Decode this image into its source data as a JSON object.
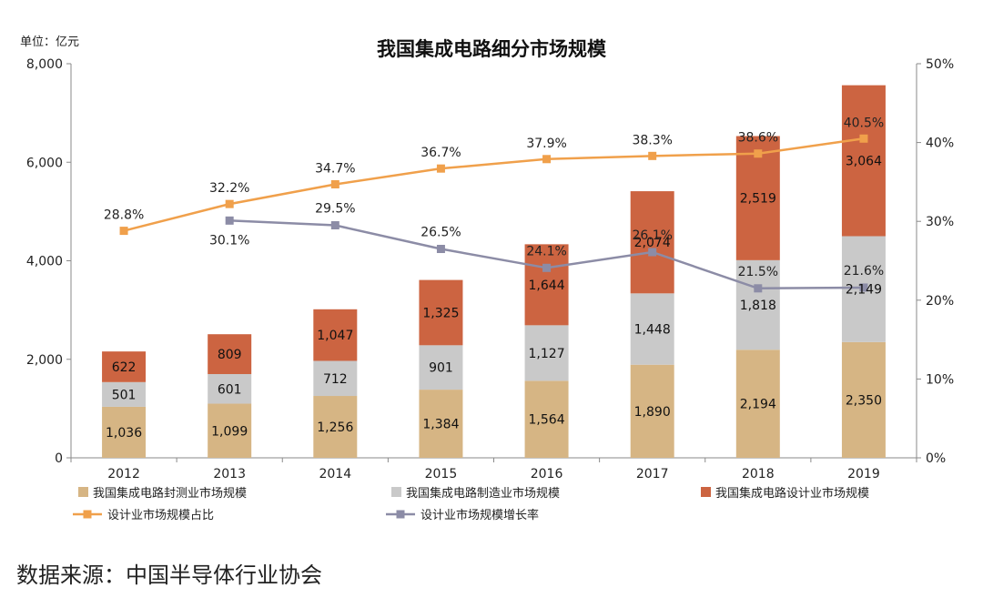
{
  "source_text": "数据来源：中国半导体行业协会",
  "chart_data": {
    "type": "bar",
    "title": "我国集成电路细分市场规模",
    "unit_label": "单位：亿元",
    "categories": [
      "2012",
      "2013",
      "2014",
      "2015",
      "2016",
      "2017",
      "2018",
      "2019"
    ],
    "left_axis": {
      "ylim": [
        0,
        8000
      ],
      "ticks": [
        "0",
        "2,000",
        "4,000",
        "6,000",
        "8,000"
      ],
      "tick_values": [
        0,
        2000,
        4000,
        6000,
        8000
      ]
    },
    "right_axis": {
      "ylim": [
        0,
        50
      ],
      "ticks": [
        "0%",
        "10%",
        "20%",
        "30%",
        "40%",
        "50%"
      ],
      "tick_values": [
        0,
        10,
        20,
        30,
        40,
        50
      ]
    },
    "series": [
      {
        "name": "我国集成电路封测业市场规模",
        "kind": "bar",
        "color": "#d6b584",
        "values": [
          1036,
          1099,
          1256,
          1384,
          1564,
          1890,
          2194,
          2350
        ],
        "labels": [
          "1,036",
          "1,099",
          "1,256",
          "1,384",
          "1,564",
          "1,890",
          "2,194",
          "2,350"
        ]
      },
      {
        "name": "我国集成电路制造业市场规模",
        "kind": "bar",
        "color": "#c9c9c9",
        "values": [
          501,
          601,
          712,
          901,
          1127,
          1448,
          1818,
          2149
        ],
        "labels": [
          "501",
          "601",
          "712",
          "901",
          "1,127",
          "1,448",
          "1,818",
          "2,149"
        ]
      },
      {
        "name": "我国集成电路设计业市场规模",
        "kind": "bar",
        "color": "#cc6441",
        "values": [
          622,
          809,
          1047,
          1325,
          1644,
          2074,
          2519,
          3064
        ],
        "labels": [
          "622",
          "809",
          "1,047",
          "1,325",
          "1,644",
          "2,074",
          "2,519",
          "3,064"
        ]
      },
      {
        "name": "设计业市场规模占比",
        "kind": "line",
        "axis": "right",
        "color": "#f0a04b",
        "values": [
          28.8,
          32.2,
          34.7,
          36.7,
          37.9,
          38.3,
          38.6,
          40.5
        ],
        "labels": [
          "28.8%",
          "32.2%",
          "34.7%",
          "36.7%",
          "37.9%",
          "38.3%",
          "38.6%",
          "40.5%"
        ]
      },
      {
        "name": "设计业市场规模增长率",
        "kind": "line",
        "axis": "right",
        "color": "#8c8ca6",
        "values": [
          null,
          30.1,
          29.5,
          26.5,
          24.1,
          26.1,
          21.5,
          21.6
        ],
        "labels": [
          "",
          "30.1%",
          "29.5%",
          "26.5%",
          "24.1%",
          "26.1%",
          "21.5%",
          "21.6%"
        ]
      }
    ]
  }
}
